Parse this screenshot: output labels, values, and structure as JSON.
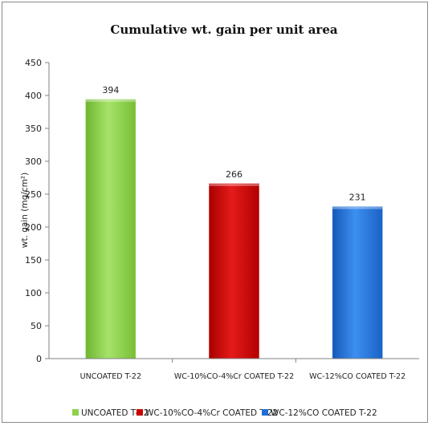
{
  "chart_data": {
    "type": "bar",
    "title": "Cumulative  wt. gain per unit area",
    "ylabel": "wt. gain (mg/cm²)",
    "xlabel": "",
    "ylim": [
      0,
      450
    ],
    "yticks": [
      0,
      50,
      100,
      150,
      200,
      250,
      300,
      350,
      400,
      450
    ],
    "grid": false,
    "legend_position": "bottom",
    "categories": [
      "UNCOATED T-22",
      "WC-10%CO-4%Cr COATED T-22",
      "WC-12%CO COATED T-22"
    ],
    "values": [
      394,
      266,
      231
    ],
    "data_labels": [
      "394",
      "266",
      "231"
    ],
    "colors": [
      "#8fd14f",
      "#cc0000",
      "#1f6fd6"
    ],
    "legend": [
      "UNCOATED T-22",
      "WC-10%CO-4%Cr COATED T-22",
      "WC-12%CO COATED T-22"
    ]
  }
}
